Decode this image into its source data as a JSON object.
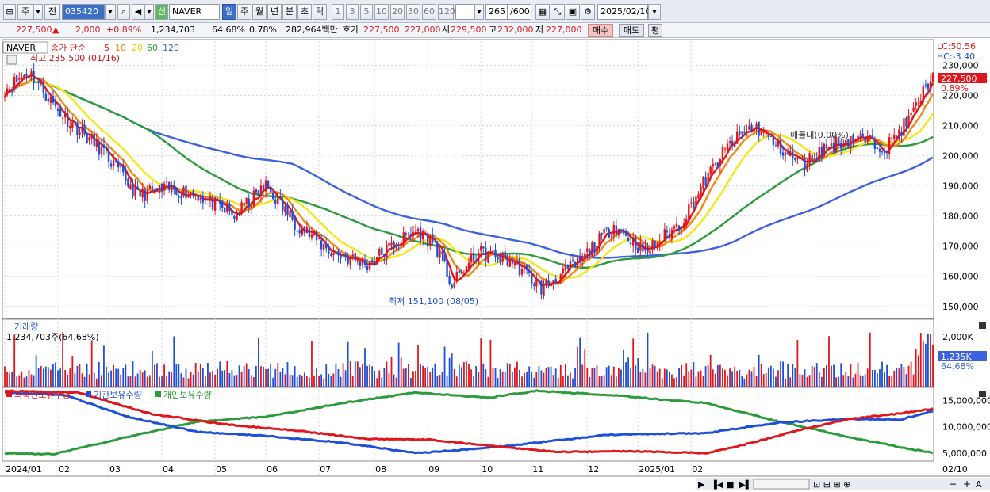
{
  "toolbar": {
    "period_current": "주",
    "prefix": "전",
    "code": "035420",
    "sin": "신",
    "name": "NAVER",
    "periods": [
      "일",
      "주",
      "월",
      "년",
      "분",
      "초",
      "틱"
    ],
    "numbers": [
      "1",
      "3",
      "5",
      "10",
      "20",
      "30",
      "60",
      "120"
    ],
    "count": "265",
    "total": "/600",
    "date": "2025/02/10"
  },
  "quote": {
    "price": "227,500",
    "arrow": "▲",
    "change": "2,000",
    "change_pct": "+0.89%",
    "volume": "1,234,703",
    "vol_ratio": "64.68%",
    "turnover": "0.78%",
    "amount": "282,964백만",
    "hoga_label": "호가",
    "ask": "227,500",
    "bid": "227,000",
    "open_label": "시",
    "open": "229,500",
    "high_label": "고",
    "high": "232,000",
    "low_label": "저",
    "low": "227,000",
    "buy": "매수",
    "sell": "매도",
    "avg": "평"
  },
  "colors": {
    "up": "#e0161c",
    "down": "#1d4fd8",
    "ma5": "#e0161c",
    "ma10": "#f08a14",
    "ma20": "#f5e616",
    "ma60": "#2b9b3c",
    "ma120": "#3c62e0",
    "foreign": "#e0161c",
    "inst": "#1d4fd8",
    "indiv": "#2b9b3c"
  },
  "chart_data": [
    {
      "type": "candlestick",
      "title": "NAVER",
      "legend": {
        "label": "종가 단순",
        "periods": [
          "5",
          "10",
          "20",
          "60",
          "120"
        ]
      },
      "y_ticks": [
        "230,000",
        "220,000",
        "210,000",
        "200,000",
        "190,000",
        "180,000",
        "170,000",
        "160,000",
        "150,000"
      ],
      "ylim": [
        146000,
        238000
      ],
      "max_label": "최고 235,500 (01/16)",
      "min_label": "최저 151,100 (08/05)",
      "lc_label": "LC:50.56",
      "hc_label": "HC:-3.40",
      "price_tag": "227,500",
      "pct_tag": "0.89%",
      "overlay_label": "매물대(0.00%)",
      "x_labels": [
        "2024/01",
        "02",
        "03",
        "04",
        "05",
        "06",
        "07",
        "08",
        "09",
        "10",
        "11",
        "12",
        "2025/01",
        "02",
        "02/10"
      ],
      "close_anchors": [
        [
          0,
          222000
        ],
        [
          10,
          228000
        ],
        [
          22,
          215000
        ],
        [
          40,
          202000
        ],
        [
          55,
          187000
        ],
        [
          68,
          189000
        ],
        [
          80,
          187000
        ],
        [
          95,
          180000
        ],
        [
          108,
          190000
        ],
        [
          120,
          178000
        ],
        [
          135,
          168000
        ],
        [
          150,
          164000
        ],
        [
          160,
          170000
        ],
        [
          170,
          175000
        ],
        [
          178,
          171000
        ],
        [
          185,
          157000
        ],
        [
          196,
          168000
        ],
        [
          210,
          165000
        ],
        [
          222,
          156000
        ],
        [
          238,
          165000
        ],
        [
          252,
          177000
        ],
        [
          265,
          168000
        ],
        [
          280,
          178000
        ],
        [
          290,
          192000
        ],
        [
          300,
          204000
        ],
        [
          310,
          210000
        ],
        [
          320,
          203000
        ],
        [
          330,
          197000
        ],
        [
          340,
          203000
        ],
        [
          352,
          206000
        ],
        [
          365,
          203000
        ],
        [
          375,
          213000
        ],
        [
          384,
          227500
        ]
      ]
    },
    {
      "type": "bar",
      "title": "거래량",
      "value_label": "1,234,703주(64.68%)",
      "y_ticks": [
        "2,000K"
      ],
      "tag": "1,235K",
      "tag_pct": "64.68%"
    },
    {
      "type": "line",
      "series": [
        {
          "name": "외국인보유수량"
        },
        {
          "name": "기관보유수량"
        },
        {
          "name": "개인보유수량"
        }
      ],
      "y_ticks": [
        "15,000,000",
        "10,000,000",
        "5,000,000"
      ],
      "ylim": [
        3500000,
        17000000
      ],
      "foreign_anchors": [
        [
          0,
          16800000
        ],
        [
          30,
          16500000
        ],
        [
          60,
          12500000
        ],
        [
          90,
          10500000
        ],
        [
          120,
          9300000
        ],
        [
          150,
          7700000
        ],
        [
          175,
          7600000
        ],
        [
          200,
          6400000
        ],
        [
          230,
          5200000
        ],
        [
          260,
          5400000
        ],
        [
          290,
          5000000
        ],
        [
          305,
          6500000
        ],
        [
          330,
          9500000
        ],
        [
          350,
          11500000
        ],
        [
          370,
          12500000
        ],
        [
          384,
          13400000
        ]
      ],
      "inst_anchors": [
        [
          0,
          16500000
        ],
        [
          25,
          16000000
        ],
        [
          50,
          12000000
        ],
        [
          80,
          9000000
        ],
        [
          110,
          8200000
        ],
        [
          140,
          7000000
        ],
        [
          170,
          5000000
        ],
        [
          200,
          6000000
        ],
        [
          220,
          7000000
        ],
        [
          250,
          8500000
        ],
        [
          290,
          8800000
        ],
        [
          320,
          10800000
        ],
        [
          350,
          11500000
        ],
        [
          370,
          11300000
        ],
        [
          384,
          13000000
        ]
      ],
      "indiv_anchors": [
        [
          0,
          5000000
        ],
        [
          20,
          4800000
        ],
        [
          50,
          8000000
        ],
        [
          80,
          11000000
        ],
        [
          110,
          12000000
        ],
        [
          140,
          14500000
        ],
        [
          170,
          16500000
        ],
        [
          200,
          15500000
        ],
        [
          220,
          16800000
        ],
        [
          250,
          16000000
        ],
        [
          290,
          14500000
        ],
        [
          320,
          11000000
        ],
        [
          350,
          8000000
        ],
        [
          370,
          6200000
        ],
        [
          384,
          5100000
        ]
      ]
    }
  ]
}
